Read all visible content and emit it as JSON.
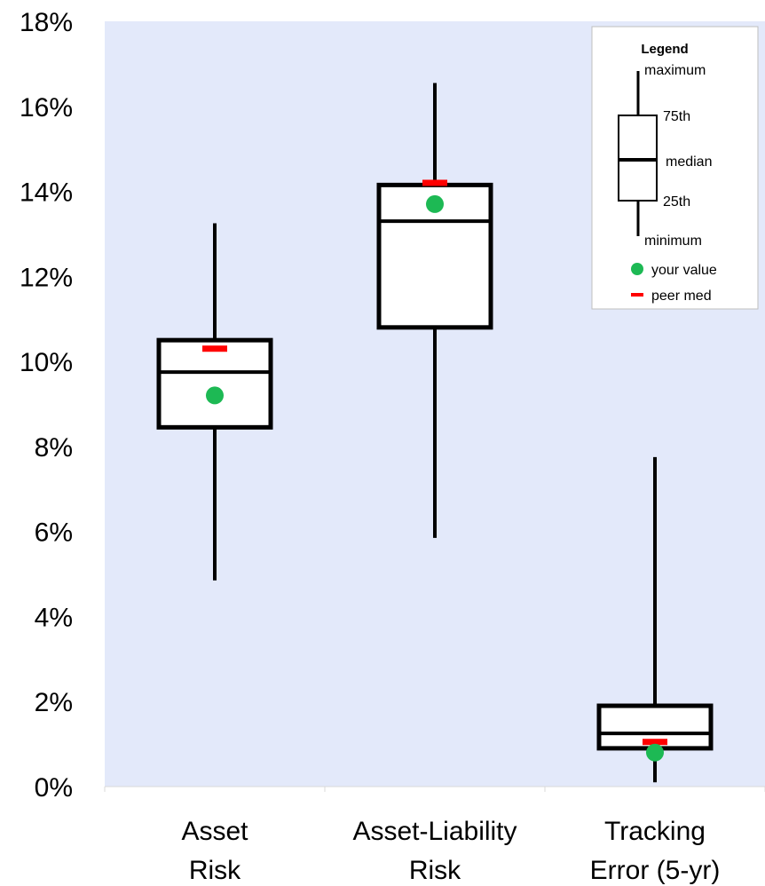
{
  "chart_data": {
    "type": "boxplot",
    "ylim": [
      0,
      18
    ],
    "yticks": [
      0,
      2,
      4,
      6,
      8,
      10,
      12,
      14,
      16,
      18
    ],
    "ytick_labels": [
      "0%",
      "2%",
      "4%",
      "6%",
      "8%",
      "10%",
      "12%",
      "14%",
      "16%",
      "18%"
    ],
    "grid": false,
    "background_color": "#E3E9FA",
    "your_value_color": "#1DB954",
    "peer_median_color": "#FF0000",
    "categories": [
      {
        "label_lines": [
          "Asset",
          "Risk"
        ],
        "min": 4.85,
        "q1": 8.45,
        "median": 9.75,
        "q3": 10.5,
        "max": 13.25,
        "your_value": 9.2,
        "peer_median": 10.3
      },
      {
        "label_lines": [
          "Asset-Liability",
          "Risk"
        ],
        "min": 5.85,
        "q1": 10.8,
        "median": 13.3,
        "q3": 14.15,
        "max": 16.55,
        "your_value": 13.7,
        "peer_median": 14.2
      },
      {
        "label_lines": [
          "Tracking",
          "Error (5-yr)"
        ],
        "min": 0.1,
        "q1": 0.9,
        "median": 1.25,
        "q3": 1.9,
        "max": 7.75,
        "your_value": 0.8,
        "peer_median": 1.05
      }
    ],
    "legend": {
      "position": "top-right",
      "title": "Legend",
      "labels": {
        "maximum": "maximum",
        "p75": "75th",
        "median": "median",
        "p25": "25th",
        "minimum": "minimum",
        "your_value": "your value",
        "peer_median": "peer med"
      }
    }
  }
}
